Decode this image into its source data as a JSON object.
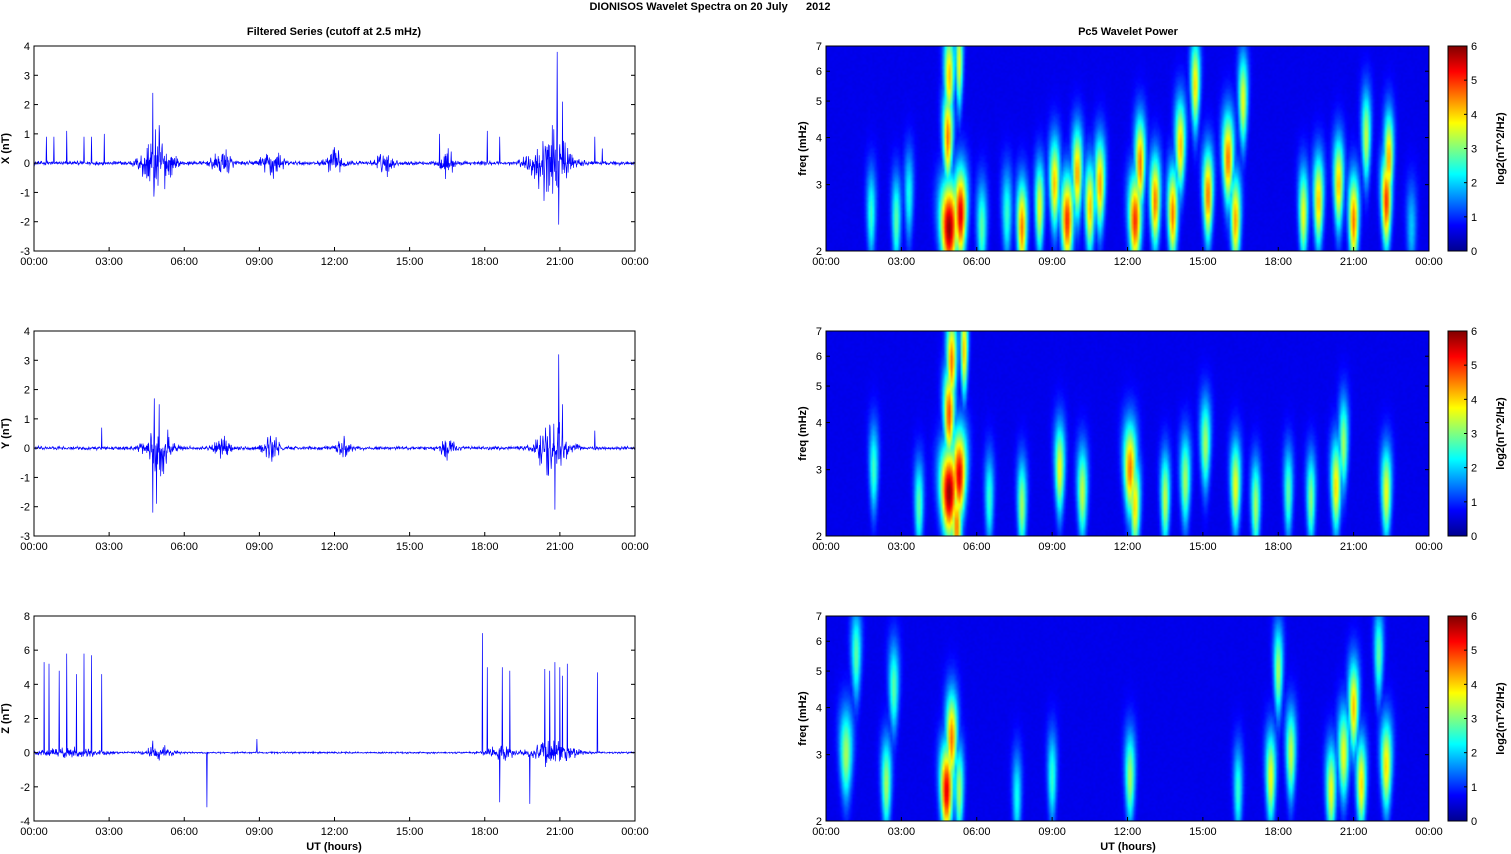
{
  "figure": {
    "suptitle": "DIONISOS Wavelet Spectra on 20 July      2012",
    "left_title": "Filtered Series (cutoff at 2.5 mHz)",
    "right_title": "Pc5 Wavelet Power",
    "xlabel": "UT (hours)"
  },
  "chart_data": [
    {
      "type": "line",
      "name": "X",
      "ylabel": "X (nT)",
      "xlim": [
        0,
        24
      ],
      "ylim": [
        -3,
        4
      ],
      "yticks": [
        "-3",
        "-2",
        "-1",
        "0",
        "1",
        "2",
        "3",
        "4"
      ],
      "xticks": [
        "00:00",
        "03:00",
        "06:00",
        "09:00",
        "12:00",
        "15:00",
        "18:00",
        "21:00",
        "00:00"
      ],
      "color": "#0000ff",
      "noise": 0.08,
      "activity": [
        [
          4.9,
          0.55,
          1.3
        ],
        [
          7.5,
          0.35,
          0.6
        ],
        [
          9.5,
          0.4,
          0.6
        ],
        [
          12.0,
          0.35,
          0.5
        ],
        [
          14.0,
          0.3,
          0.5
        ],
        [
          16.5,
          0.3,
          0.5
        ],
        [
          20.6,
          0.7,
          1.5
        ]
      ],
      "spikes": [
        [
          0.5,
          0.9
        ],
        [
          0.8,
          0.9
        ],
        [
          1.3,
          1.1
        ],
        [
          2.0,
          0.9
        ],
        [
          2.3,
          0.9
        ],
        [
          2.8,
          1.0
        ],
        [
          4.75,
          2.4
        ],
        [
          4.8,
          -0.8
        ],
        [
          5.0,
          1.3
        ],
        [
          16.2,
          1.0
        ],
        [
          18.1,
          1.1
        ],
        [
          18.6,
          0.9
        ],
        [
          20.7,
          1.3
        ],
        [
          20.9,
          3.8
        ],
        [
          20.95,
          -2.1
        ],
        [
          21.1,
          2.1
        ],
        [
          22.4,
          0.9
        ],
        [
          22.7,
          0.5
        ]
      ]
    },
    {
      "type": "line",
      "name": "Y",
      "ylabel": "Y (nT)",
      "xlim": [
        0,
        24
      ],
      "ylim": [
        -3,
        4
      ],
      "yticks": [
        "-3",
        "-2",
        "-1",
        "0",
        "1",
        "2",
        "3",
        "4"
      ],
      "xticks": [
        "00:00",
        "03:00",
        "06:00",
        "09:00",
        "12:00",
        "15:00",
        "18:00",
        "21:00",
        "00:00"
      ],
      "color": "#0000ff",
      "noise": 0.07,
      "activity": [
        [
          5.0,
          0.5,
          1.0
        ],
        [
          7.5,
          0.3,
          0.5
        ],
        [
          9.5,
          0.35,
          0.5
        ],
        [
          12.3,
          0.3,
          0.4
        ],
        [
          16.5,
          0.3,
          0.4
        ],
        [
          20.7,
          0.6,
          1.1
        ]
      ],
      "spikes": [
        [
          2.7,
          0.7
        ],
        [
          4.75,
          -2.2
        ],
        [
          4.8,
          1.7
        ],
        [
          4.9,
          -1.9
        ],
        [
          5.0,
          1.5
        ],
        [
          20.8,
          -2.1
        ],
        [
          20.95,
          3.2
        ],
        [
          21.1,
          1.5
        ],
        [
          22.4,
          0.6
        ]
      ]
    },
    {
      "type": "line",
      "name": "Z",
      "ylabel": "Z (nT)",
      "xlim": [
        0,
        24
      ],
      "ylim": [
        -4,
        8
      ],
      "yticks": [
        "-4",
        "-2",
        "0",
        "2",
        "4",
        "6",
        "8"
      ],
      "xticks": [
        "00:00",
        "03:00",
        "06:00",
        "09:00",
        "12:00",
        "15:00",
        "18:00",
        "21:00",
        "00:00"
      ],
      "color": "#0000ff",
      "noise": 0.06,
      "activity": [
        [
          1.5,
          1.2,
          0.3
        ],
        [
          5.0,
          0.5,
          0.5
        ],
        [
          18.6,
          0.6,
          0.5
        ],
        [
          20.7,
          0.8,
          1.0
        ]
      ],
      "spikes": [
        [
          0.4,
          5.3
        ],
        [
          0.6,
          5.2
        ],
        [
          1.0,
          4.8
        ],
        [
          1.3,
          5.8
        ],
        [
          1.7,
          4.6
        ],
        [
          2.0,
          5.8
        ],
        [
          2.3,
          5.7
        ],
        [
          2.7,
          4.6
        ],
        [
          4.75,
          0.7
        ],
        [
          6.9,
          -3.2
        ],
        [
          8.9,
          0.8
        ],
        [
          17.9,
          7.0
        ],
        [
          18.1,
          5.0
        ],
        [
          18.6,
          -2.9
        ],
        [
          18.7,
          5.0
        ],
        [
          19.0,
          4.8
        ],
        [
          19.8,
          -3.0
        ],
        [
          20.4,
          4.9
        ],
        [
          20.6,
          4.8
        ],
        [
          20.8,
          5.3
        ],
        [
          21.0,
          5.0
        ],
        [
          21.1,
          4.5
        ],
        [
          21.3,
          5.2
        ],
        [
          22.5,
          4.7
        ]
      ]
    },
    {
      "type": "heatmap",
      "name": "X wavelet power",
      "ylabel": "freq (mHz)",
      "xlim": [
        0,
        24
      ],
      "ylim": [
        2,
        7
      ],
      "yscale": "log",
      "yticks": [
        2,
        3,
        4,
        5,
        6,
        7
      ],
      "xticks": [
        "00:00",
        "03:00",
        "06:00",
        "09:00",
        "12:00",
        "15:00",
        "18:00",
        "21:00",
        "00:00"
      ],
      "colorbar_label": "log2(nT^2/Hz)",
      "clim": [
        0,
        6
      ],
      "cbar_ticks": [
        "0",
        "1",
        "2",
        "3",
        "4",
        "5",
        "6"
      ],
      "colormap": "jet",
      "blobs": [
        [
          4.9,
          2.3,
          6.0,
          0.35
        ],
        [
          5.35,
          2.5,
          5.5,
          0.25
        ],
        [
          4.85,
          4.0,
          4.5,
          0.2
        ],
        [
          4.9,
          5.8,
          4.0,
          0.2
        ],
        [
          5.3,
          6.3,
          3.5,
          0.15
        ],
        [
          7.8,
          2.3,
          4.5,
          0.2
        ],
        [
          8.5,
          2.6,
          3.5,
          0.18
        ],
        [
          9.1,
          3.0,
          4.0,
          0.2
        ],
        [
          9.6,
          2.4,
          5.0,
          0.25
        ],
        [
          10.0,
          3.2,
          4.2,
          0.2
        ],
        [
          10.5,
          2.6,
          4.0,
          0.2
        ],
        [
          10.9,
          3.0,
          4.2,
          0.2
        ],
        [
          12.3,
          2.4,
          5.0,
          0.25
        ],
        [
          12.5,
          3.4,
          4.5,
          0.2
        ],
        [
          13.1,
          2.7,
          4.5,
          0.2
        ],
        [
          13.8,
          2.5,
          4.5,
          0.2
        ],
        [
          14.1,
          3.8,
          4.0,
          0.2
        ],
        [
          14.7,
          5.5,
          3.8,
          0.18
        ],
        [
          15.2,
          2.8,
          4.5,
          0.2
        ],
        [
          16.0,
          3.5,
          4.5,
          0.22
        ],
        [
          16.3,
          2.4,
          4.2,
          0.2
        ],
        [
          16.6,
          5.0,
          3.5,
          0.18
        ],
        [
          19.0,
          2.5,
          3.5,
          0.18
        ],
        [
          19.6,
          2.7,
          4.0,
          0.2
        ],
        [
          20.4,
          3.0,
          4.0,
          0.2
        ],
        [
          21.0,
          2.4,
          4.5,
          0.2
        ],
        [
          21.5,
          4.0,
          3.2,
          0.18
        ],
        [
          22.3,
          2.7,
          5.0,
          0.2
        ],
        [
          22.4,
          3.5,
          4.2,
          0.18
        ],
        [
          1.8,
          2.5,
          2.2,
          0.18
        ],
        [
          2.8,
          2.4,
          2.5,
          0.18
        ],
        [
          3.3,
          2.8,
          2.0,
          0.18
        ],
        [
          6.2,
          2.3,
          2.5,
          0.2
        ],
        [
          7.2,
          2.5,
          2.2,
          0.2
        ],
        [
          23.3,
          2.3,
          1.5,
          0.2
        ]
      ]
    },
    {
      "type": "heatmap",
      "name": "Y wavelet power",
      "ylabel": "freq (mHz)",
      "xlim": [
        0,
        24
      ],
      "ylim": [
        2,
        7
      ],
      "yscale": "log",
      "yticks": [
        2,
        3,
        4,
        5,
        6,
        7
      ],
      "xticks": [
        "00:00",
        "03:00",
        "06:00",
        "09:00",
        "12:00",
        "15:00",
        "18:00",
        "21:00",
        "00:00"
      ],
      "colorbar_label": "log2(nT^2/Hz)",
      "clim": [
        0,
        6
      ],
      "cbar_ticks": [
        "0",
        "1",
        "2",
        "3",
        "4",
        "5",
        "6"
      ],
      "colormap": "jet",
      "blobs": [
        [
          4.9,
          2.6,
          6.0,
          0.35
        ],
        [
          5.3,
          2.9,
          5.5,
          0.28
        ],
        [
          4.9,
          4.2,
          4.8,
          0.22
        ],
        [
          5.0,
          5.8,
          4.5,
          0.2
        ],
        [
          5.5,
          6.2,
          4.0,
          0.15
        ],
        [
          5.2,
          2.1,
          4.5,
          0.2
        ],
        [
          7.8,
          2.4,
          3.0,
          0.18
        ],
        [
          9.3,
          3.0,
          3.5,
          0.2
        ],
        [
          10.2,
          2.6,
          3.2,
          0.2
        ],
        [
          12.1,
          3.0,
          4.5,
          0.25
        ],
        [
          12.3,
          2.4,
          3.8,
          0.2
        ],
        [
          13.5,
          2.5,
          3.2,
          0.18
        ],
        [
          14.3,
          2.8,
          3.0,
          0.2
        ],
        [
          15.1,
          3.5,
          3.0,
          0.2
        ],
        [
          16.3,
          2.7,
          3.5,
          0.2
        ],
        [
          17.1,
          2.4,
          3.0,
          0.18
        ],
        [
          18.4,
          2.6,
          2.5,
          0.18
        ],
        [
          19.3,
          2.5,
          2.8,
          0.18
        ],
        [
          20.3,
          2.7,
          3.8,
          0.2
        ],
        [
          20.6,
          3.5,
          3.0,
          0.18
        ],
        [
          22.3,
          2.6,
          3.5,
          0.2
        ],
        [
          1.9,
          3.0,
          2.3,
          0.18
        ],
        [
          3.7,
          2.4,
          2.5,
          0.18
        ],
        [
          6.5,
          2.5,
          2.2,
          0.18
        ]
      ]
    },
    {
      "type": "heatmap",
      "name": "Z wavelet power",
      "ylabel": "freq (mHz)",
      "xlim": [
        0,
        24
      ],
      "ylim": [
        2,
        7
      ],
      "yscale": "log",
      "yticks": [
        2,
        3,
        4,
        5,
        6,
        7
      ],
      "xticks": [
        "00:00",
        "03:00",
        "06:00",
        "09:00",
        "12:00",
        "15:00",
        "18:00",
        "21:00",
        "00:00"
      ],
      "colorbar_label": "log2(nT^2/Hz)",
      "clim": [
        0,
        6
      ],
      "cbar_ticks": [
        "0",
        "1",
        "2",
        "3",
        "4",
        "5",
        "6"
      ],
      "colormap": "jet",
      "blobs": [
        [
          4.8,
          2.4,
          5.5,
          0.25
        ],
        [
          5.0,
          3.3,
          4.5,
          0.22
        ],
        [
          5.3,
          2.4,
          3.0,
          0.18
        ],
        [
          0.8,
          3.0,
          3.0,
          0.25
        ],
        [
          1.2,
          5.5,
          2.5,
          0.2
        ],
        [
          2.4,
          2.5,
          3.0,
          0.2
        ],
        [
          2.7,
          4.5,
          2.5,
          0.2
        ],
        [
          7.6,
          2.3,
          2.0,
          0.18
        ],
        [
          9.0,
          2.6,
          2.2,
          0.18
        ],
        [
          12.1,
          2.6,
          3.0,
          0.2
        ],
        [
          16.4,
          2.4,
          2.2,
          0.18
        ],
        [
          17.7,
          2.6,
          3.5,
          0.2
        ],
        [
          18.0,
          5.0,
          3.0,
          0.18
        ],
        [
          18.5,
          3.0,
          3.2,
          0.2
        ],
        [
          20.1,
          2.4,
          3.5,
          0.2
        ],
        [
          20.6,
          3.0,
          3.5,
          0.22
        ],
        [
          21.0,
          4.0,
          4.0,
          0.2
        ],
        [
          21.3,
          2.5,
          3.8,
          0.2
        ],
        [
          22.3,
          2.8,
          3.8,
          0.22
        ],
        [
          22.0,
          5.5,
          2.5,
          0.18
        ]
      ]
    }
  ]
}
